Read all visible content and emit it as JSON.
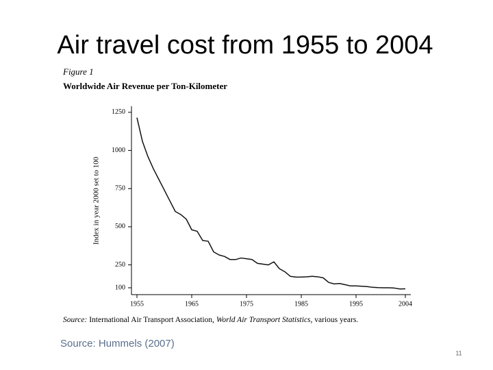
{
  "slide": {
    "title": "Air travel cost from 1955 to 2004",
    "footer_source": "Source: Hummels (2007)",
    "page_number": "11"
  },
  "chart_data": {
    "type": "line",
    "figure_label": "Figure 1",
    "title": "Worldwide Air Revenue per Ton-Kilometer",
    "ylabel": "Index in year 2000 set to 100",
    "source": [
      "Source:",
      " International Air Transport Association, ",
      "World Air Transport Statistics",
      ", various years."
    ],
    "x": [
      1955,
      1956,
      1957,
      1958,
      1959,
      1960,
      1961,
      1962,
      1963,
      1964,
      1965,
      1966,
      1967,
      1968,
      1969,
      1970,
      1971,
      1972,
      1973,
      1974,
      1975,
      1976,
      1977,
      1978,
      1979,
      1980,
      1981,
      1982,
      1983,
      1984,
      1985,
      1986,
      1987,
      1988,
      1989,
      1990,
      1991,
      1992,
      1993,
      1994,
      1995,
      1996,
      1997,
      1998,
      1999,
      2000,
      2001,
      2002,
      2003,
      2004
    ],
    "values": [
      1215,
      1060,
      960,
      880,
      810,
      740,
      670,
      600,
      580,
      550,
      480,
      470,
      410,
      405,
      335,
      315,
      305,
      285,
      285,
      295,
      290,
      285,
      260,
      255,
      250,
      270,
      225,
      205,
      175,
      170,
      170,
      172,
      175,
      172,
      165,
      135,
      125,
      128,
      120,
      112,
      112,
      110,
      108,
      103,
      101,
      100,
      100,
      98,
      92,
      93
    ],
    "color": "#111111",
    "xlim": [
      1954,
      2005
    ],
    "xticks": [
      1955,
      1965,
      1975,
      1985,
      1995,
      2004
    ],
    "ylim": [
      55,
      1290
    ],
    "yticks": [
      100,
      250,
      500,
      750,
      1000,
      1250
    ]
  }
}
